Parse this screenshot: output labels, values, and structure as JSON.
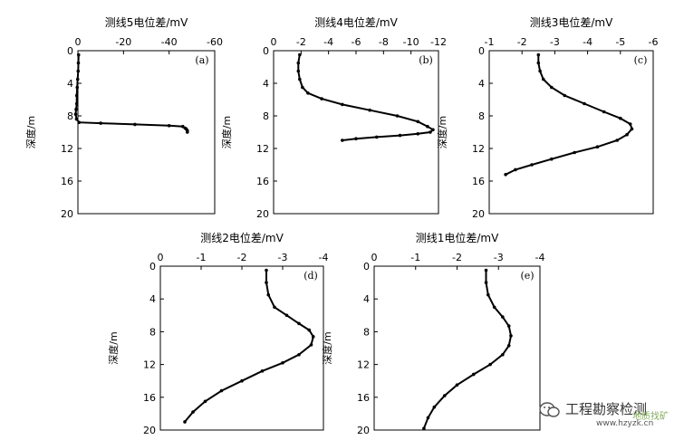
{
  "chart_data": [
    {
      "type": "line",
      "panel": "(a)",
      "xlabel": "测线5电位差/mV",
      "ylabel": "深度/m",
      "xlim": [
        0,
        -60
      ],
      "xticks": [
        0,
        -20,
        -40,
        -60
      ],
      "ylim": [
        0,
        20
      ],
      "yticks": [
        0,
        4,
        8,
        12,
        16,
        20
      ],
      "series": [
        {
          "x": [
            -0.3,
            -0.2,
            -0.1,
            0.1,
            0.3,
            0.5,
            0.5,
            0.8,
            1.0,
            0.6,
            -0.5,
            -10,
            -25,
            -40,
            -46,
            -47,
            -48,
            -48,
            -47.5
          ],
          "y": [
            0.5,
            1.5,
            2.5,
            3.5,
            4.5,
            5.5,
            6.5,
            7.2,
            7.8,
            8.4,
            8.8,
            8.9,
            9.05,
            9.2,
            9.3,
            9.5,
            9.8,
            10.0,
            9.6
          ]
        }
      ]
    },
    {
      "type": "line",
      "panel": "(b)",
      "xlabel": "测线4电位差/mV",
      "ylabel": "深度/m",
      "xlim": [
        0,
        -12
      ],
      "xticks": [
        0,
        -2,
        -4,
        -6,
        -8,
        -10,
        -12
      ],
      "ylim": [
        0,
        20
      ],
      "yticks": [
        0,
        4,
        8,
        12,
        16,
        20
      ],
      "series": [
        {
          "x": [
            -1.9,
            -1.8,
            -1.8,
            -1.9,
            -2.1,
            -2.5,
            -3.5,
            -5,
            -7,
            -9,
            -10.5,
            -11.2,
            -11.6,
            -11.4,
            -10.5,
            -9.2,
            -7.5,
            -6.0,
            -5.0
          ],
          "y": [
            0.5,
            1.5,
            2.5,
            3.5,
            4.5,
            5.2,
            5.9,
            6.6,
            7.3,
            8.0,
            8.7,
            9.3,
            9.7,
            10.0,
            10.2,
            10.4,
            10.6,
            10.8,
            11.0
          ]
        }
      ]
    },
    {
      "type": "line",
      "panel": "(c)",
      "xlabel": "测线3电位差/mV",
      "ylabel": "深度/m",
      "xlim": [
        -1,
        -6
      ],
      "xticks": [
        -1,
        -2,
        -3,
        -4,
        -5,
        -6
      ],
      "ylim": [
        0,
        20
      ],
      "yticks": [
        0,
        4,
        8,
        12,
        16,
        20
      ],
      "series": [
        {
          "x": [
            -2.5,
            -2.5,
            -2.55,
            -2.65,
            -2.9,
            -3.3,
            -3.9,
            -4.5,
            -5.0,
            -5.3,
            -5.35,
            -5.2,
            -4.9,
            -4.3,
            -3.6,
            -2.9,
            -2.3,
            -1.8,
            -1.5
          ],
          "y": [
            0.5,
            1.5,
            2.5,
            3.5,
            4.5,
            5.5,
            6.5,
            7.5,
            8.3,
            9.0,
            9.6,
            10.3,
            11.0,
            11.8,
            12.5,
            13.3,
            14.0,
            14.6,
            15.2
          ]
        }
      ]
    },
    {
      "type": "line",
      "panel": "(d)",
      "xlabel": "测线2电位差/mV",
      "ylabel": "深度/m",
      "xlim": [
        0,
        -4
      ],
      "xticks": [
        0,
        -1,
        -2,
        -3,
        -4
      ],
      "ylim": [
        0,
        20
      ],
      "yticks": [
        0,
        4,
        8,
        12,
        16,
        20
      ],
      "series": [
        {
          "x": [
            -2.6,
            -2.6,
            -2.65,
            -2.8,
            -3.1,
            -3.4,
            -3.65,
            -3.75,
            -3.7,
            -3.4,
            -3.0,
            -2.5,
            -2.0,
            -1.5,
            -1.1,
            -0.8,
            -0.6
          ],
          "y": [
            0.5,
            2.0,
            3.5,
            5.0,
            6.0,
            7.0,
            7.8,
            8.6,
            9.6,
            10.8,
            11.8,
            12.8,
            14.0,
            15.2,
            16.5,
            17.8,
            19.0
          ]
        }
      ]
    },
    {
      "type": "line",
      "panel": "(e)",
      "xlabel": "测线1电位差/mV",
      "ylabel": "深度/m",
      "xlim": [
        0,
        -4
      ],
      "xticks": [
        0,
        -1,
        -2,
        -3,
        -4
      ],
      "ylim": [
        0,
        20
      ],
      "yticks": [
        0,
        4,
        8,
        12,
        16,
        20
      ],
      "series": [
        {
          "x": [
            -2.7,
            -2.7,
            -2.75,
            -2.9,
            -3.1,
            -3.25,
            -3.3,
            -3.25,
            -3.1,
            -2.8,
            -2.4,
            -2.0,
            -1.7,
            -1.45,
            -1.3,
            -1.2
          ],
          "y": [
            0.5,
            2.0,
            3.5,
            5.0,
            6.2,
            7.3,
            8.5,
            9.7,
            10.8,
            12.0,
            13.2,
            14.5,
            15.8,
            17.2,
            18.5,
            19.8
          ]
        }
      ]
    }
  ],
  "watermark": {
    "line1": "工程勘察检测",
    "line2": "地质找矿",
    "url": "www.hzyzk.cn"
  }
}
